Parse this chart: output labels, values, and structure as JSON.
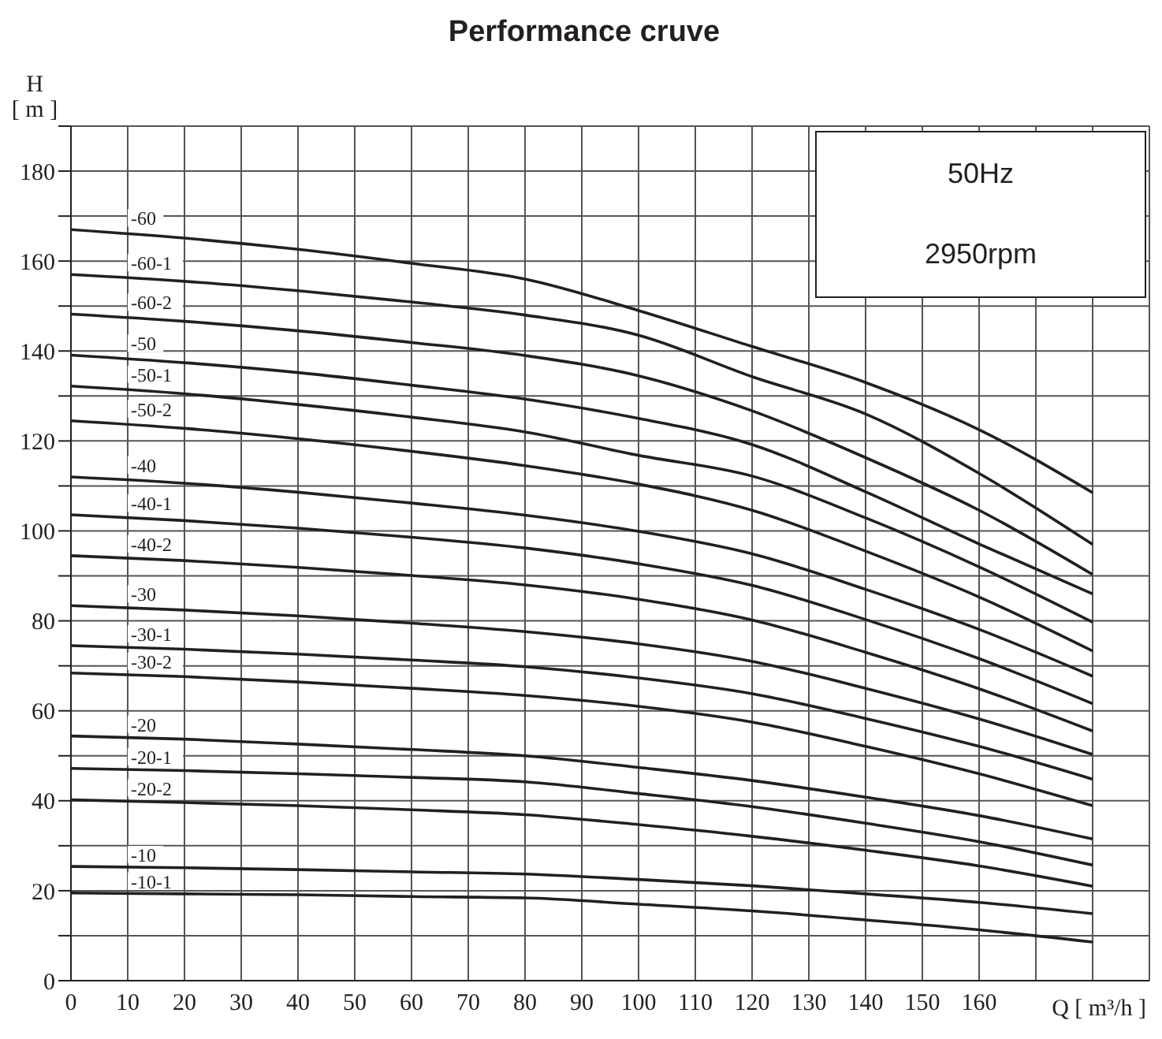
{
  "chart_data": {
    "type": "line",
    "title": "Performance cruve",
    "xlabel": "Q [ m³/h ]",
    "ylabel": "H [ m ]",
    "annotations": [
      "50Hz",
      "2950rpm"
    ],
    "x": [
      0,
      20,
      40,
      60,
      80,
      100,
      120,
      140,
      160,
      180
    ],
    "xlim": [
      0,
      190
    ],
    "xticks": [
      0,
      10,
      20,
      30,
      40,
      50,
      60,
      70,
      80,
      90,
      100,
      110,
      120,
      130,
      140,
      150,
      160,
      {
        "value": 170,
        "label": null
      },
      {
        "value": 180,
        "label": null
      },
      {
        "value": 190,
        "label": null
      }
    ],
    "ylim": [
      0,
      190
    ],
    "yticks": [
      0,
      {
        "value": 10,
        "label": null
      },
      20,
      {
        "value": 30,
        "label": null
      },
      40,
      {
        "value": 50,
        "label": null
      },
      60,
      {
        "value": 70,
        "label": null
      },
      80,
      {
        "value": 90,
        "label": null
      },
      100,
      {
        "value": 110,
        "label": null
      },
      120,
      {
        "value": 130,
        "label": null
      },
      140,
      {
        "value": 150,
        "label": null
      },
      160,
      {
        "value": 170,
        "label": null
      },
      180,
      {
        "value": 190,
        "label": null
      }
    ],
    "grid": true,
    "series": [
      {
        "name": "-60",
        "color": "#231f20",
        "values": [
          167,
          165.1,
          162.6,
          159.5,
          156,
          149,
          141,
          133,
          122.5,
          108.5
        ]
      },
      {
        "name": "-60-1",
        "color": "#231f20",
        "values": [
          157,
          155.5,
          153.4,
          150.9,
          148,
          143.5,
          134.3,
          126,
          112.8,
          97
        ]
      },
      {
        "name": "-60-2",
        "color": "#231f20",
        "values": [
          148.2,
          146.6,
          144.5,
          141.9,
          139,
          134.5,
          126.7,
          116.3,
          104.6,
          90.3
        ]
      },
      {
        "name": "-50",
        "color": "#231f20",
        "values": [
          139.1,
          137.4,
          135.2,
          132.4,
          129.3,
          125,
          119.2,
          108.7,
          97.1,
          86
        ]
      },
      {
        "name": "-50-1",
        "color": "#231f20",
        "values": [
          132.2,
          130.5,
          128.1,
          125.3,
          122,
          116.8,
          112.2,
          102.9,
          92,
          79.7
        ]
      },
      {
        "name": "-50-2",
        "color": "#231f20",
        "values": [
          124.5,
          122.8,
          120.5,
          117.7,
          114.5,
          110.4,
          104.6,
          95.5,
          85.3,
          73.3
        ]
      },
      {
        "name": "-40",
        "color": "#231f20",
        "values": [
          112,
          110.6,
          108.6,
          106.2,
          103.5,
          99.9,
          94.9,
          87,
          78.1,
          67.7
        ]
      },
      {
        "name": "-40-1",
        "color": "#231f20",
        "values": [
          103.6,
          102.3,
          100.6,
          98.6,
          96.2,
          92.7,
          87.9,
          80.3,
          71.6,
          61.6
        ]
      },
      {
        "name": "-40-2",
        "color": "#231f20",
        "values": [
          94.5,
          93.4,
          91.9,
          90.1,
          88,
          84.8,
          80.2,
          73,
          64.9,
          55.5
        ]
      },
      {
        "name": "-30",
        "color": "#231f20",
        "values": [
          83.4,
          82.4,
          81.1,
          79.5,
          77.6,
          74.9,
          71,
          65,
          58.2,
          50.3
        ]
      },
      {
        "name": "-30-1",
        "color": "#231f20",
        "values": [
          74.5,
          73.7,
          72.6,
          71.3,
          69.8,
          67.3,
          63.8,
          58.3,
          52.1,
          44.8
        ]
      },
      {
        "name": "-30-2",
        "color": "#231f20",
        "values": [
          68.4,
          67.6,
          66.4,
          65,
          63.4,
          61,
          57.5,
          52.1,
          46,
          38.9
        ]
      },
      {
        "name": "-20",
        "color": "#231f20",
        "values": [
          54.4,
          53.7,
          52.6,
          51.4,
          50,
          47.4,
          44.5,
          40.8,
          36.7,
          31.5
        ]
      },
      {
        "name": "-20-1",
        "color": "#231f20",
        "values": [
          47.2,
          46.7,
          46,
          45.2,
          44.2,
          41.6,
          38.7,
          35,
          30.9,
          25.7
        ]
      },
      {
        "name": "-20-2",
        "color": "#231f20",
        "values": [
          40.2,
          39.6,
          38.9,
          38,
          36.9,
          34.7,
          32.1,
          29,
          25.5,
          21
        ]
      },
      {
        "name": "-10",
        "color": "#231f20",
        "values": [
          25.4,
          25.1,
          24.7,
          24.2,
          23.7,
          22.5,
          21.1,
          19.3,
          17.4,
          14.9
        ]
      },
      {
        "name": "-10-1",
        "color": "#231f20",
        "values": [
          19.5,
          19.3,
          19.1,
          18.7,
          18.4,
          17,
          15.5,
          13.5,
          11.3,
          8.6
        ]
      }
    ]
  }
}
